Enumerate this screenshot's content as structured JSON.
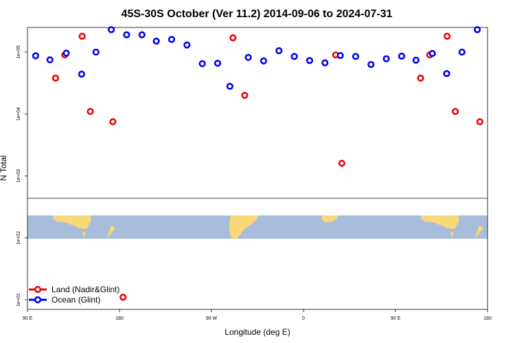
{
  "chart_data": {
    "type": "scatter",
    "title": "45S-30S October (Ver 11.2)   2014-09-06 to 2024-07-31",
    "xlabel": "Longitude (deg E)",
    "ylabel": "N Total",
    "x_scale": "longitude",
    "y_scale": "log",
    "xlim": [
      90,
      540
    ],
    "ylim": [
      7,
      250000
    ],
    "x_ticks": [
      {
        "value": 90,
        "label": "90 E"
      },
      {
        "value": 180,
        "label": "180"
      },
      {
        "value": 270,
        "label": "90 W"
      },
      {
        "value": 360,
        "label": "0"
      },
      {
        "value": 450,
        "label": "90 E"
      },
      {
        "value": 540,
        "label": "180"
      }
    ],
    "y_ticks": [
      {
        "value": 10,
        "label": "1e+01"
      },
      {
        "value": 100,
        "label": "1e+02"
      },
      {
        "value": 1000,
        "label": "1e+03"
      },
      {
        "value": 10000,
        "label": "1e+04"
      },
      {
        "value": 100000,
        "label": "1e+05"
      }
    ],
    "grid": false,
    "legend_position": "bottom-left",
    "series": [
      {
        "name": "Land (Nadir&Glint)",
        "color": "#ee0000",
        "points": [
          [
            117.5,
            38000
          ],
          [
            126.5,
            90000
          ],
          [
            143.5,
            180000
          ],
          [
            151.5,
            11000
          ],
          [
            173.5,
            7500
          ],
          [
            183.5,
            11
          ],
          [
            291,
            170000
          ],
          [
            302.5,
            20000
          ],
          [
            391.5,
            90000
          ],
          [
            397.5,
            1600
          ],
          [
            474.5,
            38000
          ],
          [
            483.5,
            90000
          ],
          [
            500.5,
            180000
          ],
          [
            508.5,
            11000
          ],
          [
            532.5,
            7500
          ]
        ]
      },
      {
        "name": "Ocean (Glint)",
        "color": "#0000ee",
        "points": [
          [
            98,
            87000
          ],
          [
            112,
            75000
          ],
          [
            128,
            96000
          ],
          [
            143,
            44000
          ],
          [
            157,
            100000
          ],
          [
            172,
            230000
          ],
          [
            187,
            190000
          ],
          [
            202,
            190000
          ],
          [
            216,
            150000
          ],
          [
            231,
            160000
          ],
          [
            246,
            130000
          ],
          [
            261,
            65000
          ],
          [
            276,
            66000
          ],
          [
            288,
            28000
          ],
          [
            306,
            82000
          ],
          [
            321,
            72000
          ],
          [
            336,
            105000
          ],
          [
            351,
            85000
          ],
          [
            366,
            73000
          ],
          [
            381,
            67000
          ],
          [
            396,
            88000
          ],
          [
            411,
            85000
          ],
          [
            426,
            63000
          ],
          [
            441,
            78000
          ],
          [
            456,
            86000
          ],
          [
            470,
            74000
          ],
          [
            486,
            95000
          ],
          [
            500,
            45000
          ],
          [
            515,
            100000
          ],
          [
            530,
            230000
          ]
        ]
      }
    ]
  }
}
